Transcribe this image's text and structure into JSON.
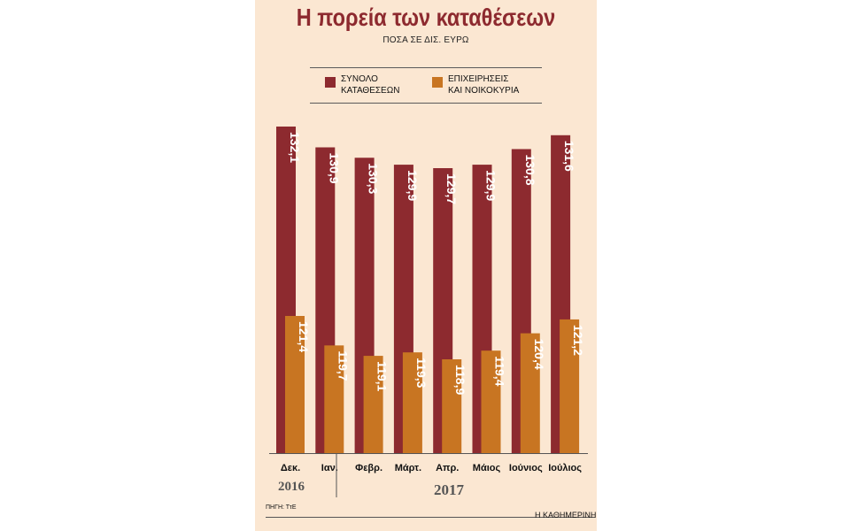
{
  "header": {
    "title": "Η πορεία των καταθέσεων",
    "subtitle": "ΠΟΣΑ ΣΕ ΔΙΣ. ΕΥΡΩ"
  },
  "legend": [
    {
      "label_line1": "ΣΥΝΟΛΟ",
      "label_line2": "ΚΑΤΑΘΕΣΕΩΝ",
      "color": "#8d2a2f"
    },
    {
      "label_line1": "ΕΠΙΧΕΙΡΗΣΕΙΣ",
      "label_line2": "ΚΑΙ ΝΟΙΚΟΚΥΡΙΑ",
      "color": "#c87522"
    }
  ],
  "chart_data": {
    "type": "bar",
    "title": "Η πορεία των καταθέσεων",
    "subtitle": "ΠΟΣΑ ΣΕ ΔΙΣ. ΕΥΡΩ",
    "categories": [
      "Δεκ.",
      "Ιαν.",
      "Φεβρ.",
      "Μάρτ.",
      "Απρ.",
      "Μάιος",
      "Ιούνιος",
      "Ιούλιος"
    ],
    "year_groups": [
      {
        "year": "2016",
        "months": [
          "Δεκ."
        ]
      },
      {
        "year": "2017",
        "months": [
          "Ιαν.",
          "Φεβρ.",
          "Μάρτ.",
          "Απρ.",
          "Μάιος",
          "Ιούνιος",
          "Ιούλιος"
        ]
      }
    ],
    "series": [
      {
        "name": "ΣΥΝΟΛΟ ΚΑΤΑΘΕΣΕΩΝ",
        "color": "#8d2a2f",
        "values": [
          132.1,
          130.9,
          130.3,
          129.9,
          129.7,
          129.9,
          130.8,
          131.6
        ],
        "labels": [
          "132,1",
          "130,9",
          "130,3",
          "129,9",
          "129,7",
          "129,9",
          "130,8",
          "131,6"
        ]
      },
      {
        "name": "ΕΠΙΧΕΙΡΗΣΕΙΣ ΚΑΙ ΝΟΙΚΟΚΥΡΙΑ",
        "color": "#c87522",
        "values": [
          121.4,
          119.7,
          119.1,
          119.3,
          118.9,
          119.4,
          120.4,
          121.2
        ],
        "labels": [
          "121,4",
          "119,7",
          "119,1",
          "119,3",
          "118,9",
          "119,4",
          "120,4",
          "121,2"
        ]
      }
    ],
    "legend": "top",
    "grid": false
  },
  "footer": {
    "source": "ΠΗΓΗ: ΤτΕ",
    "credit": "Η ΚΑΘΗΜΕΡΙΝΗ"
  }
}
